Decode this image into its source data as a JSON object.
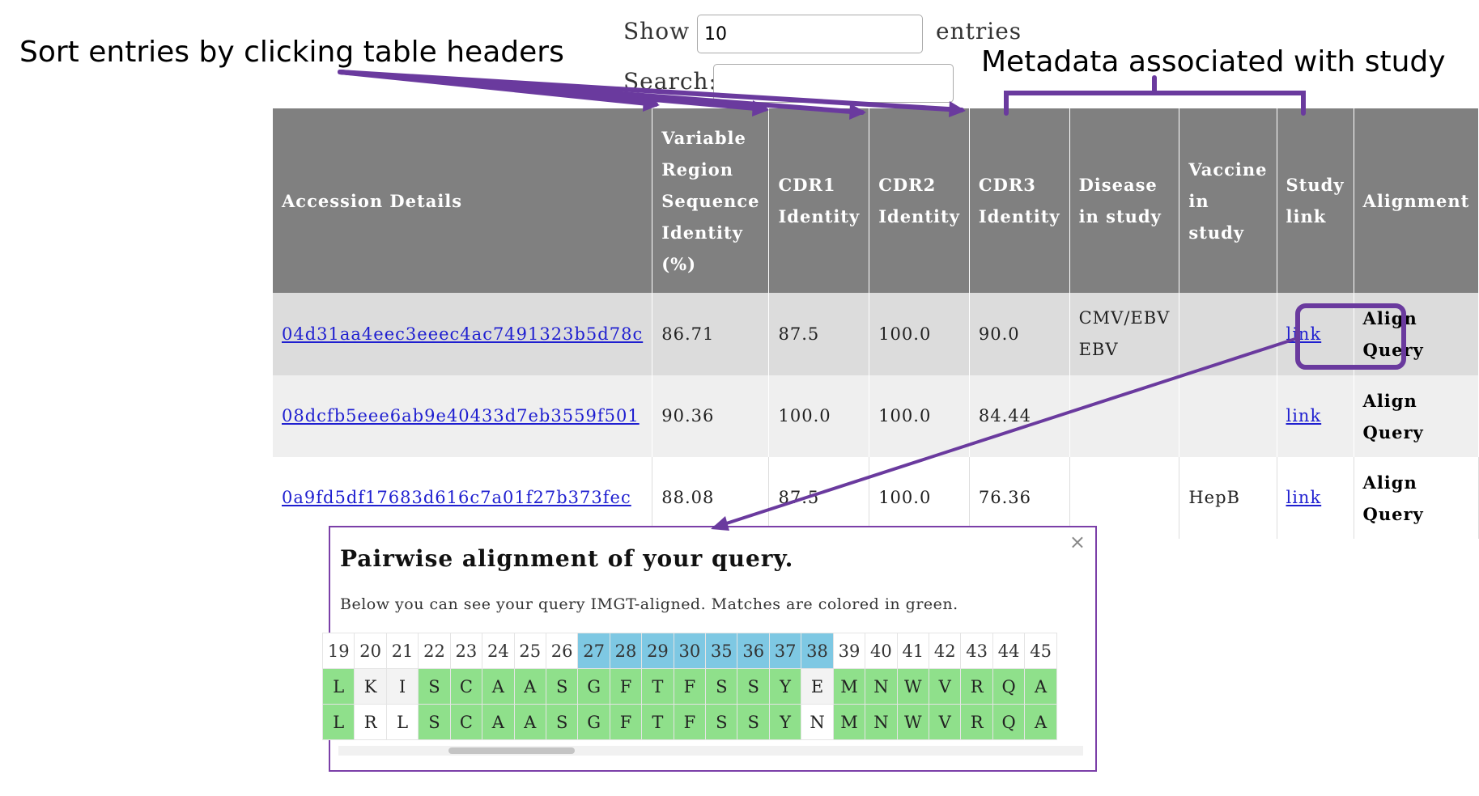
{
  "annotations": {
    "sort_hint": "Sort entries by clicking table headers",
    "metadata_hint": "Metadata associated with study"
  },
  "controls": {
    "show_label": "Show",
    "show_value": "10",
    "entries_label": "entries",
    "search_label": "Search:",
    "search_value": ""
  },
  "table": {
    "headers": [
      "Accession Details",
      "Variable Region Sequence Identity (%)",
      "CDR1 Identity",
      "CDR2 Identity",
      "CDR3 Identity",
      "Disease in study",
      "Vaccine in study",
      "Study link",
      "Alignment"
    ],
    "rows": [
      {
        "accession": "04d31aa4eec3eeec4ac7491323b5d78c",
        "vr_identity": "86.71",
        "cdr1": "87.5",
        "cdr2": "100.0",
        "cdr3": "90.0",
        "disease": "CMV/EBV EBV",
        "vaccine": "",
        "study_link": "link",
        "alignment": "Align Query"
      },
      {
        "accession": "08dcfb5eee6ab9e40433d7eb3559f501",
        "vr_identity": "90.36",
        "cdr1": "100.0",
        "cdr2": "100.0",
        "cdr3": "84.44",
        "disease": "",
        "vaccine": "",
        "study_link": "link",
        "alignment": "Align Query"
      },
      {
        "accession": "0a9fd5df17683d616c7a01f27b373fec",
        "vr_identity": "88.08",
        "cdr1": "87.5",
        "cdr2": "100.0",
        "cdr3": "76.36",
        "disease": "",
        "vaccine": "HepB",
        "study_link": "link",
        "alignment": "Align Query"
      }
    ]
  },
  "modal": {
    "title": "Pairwise alignment of your query.",
    "description": "Below you can see your query IMGT-aligned. Matches are colored in green.",
    "close_symbol": "×",
    "alignment": {
      "positions": [
        "19",
        "20",
        "21",
        "22",
        "23",
        "24",
        "25",
        "26",
        "27",
        "28",
        "29",
        "30",
        "35",
        "36",
        "37",
        "38",
        "39",
        "40",
        "41",
        "42",
        "43",
        "44",
        "45"
      ],
      "highlighted_positions": [
        "27",
        "28",
        "29",
        "30",
        "35",
        "36",
        "37",
        "38"
      ],
      "query": [
        "L",
        "K",
        "I",
        "S",
        "C",
        "A",
        "A",
        "S",
        "G",
        "F",
        "T",
        "F",
        "S",
        "S",
        "Y",
        "E",
        "M",
        "N",
        "W",
        "V",
        "R",
        "Q",
        "A"
      ],
      "target": [
        "L",
        "R",
        "L",
        "S",
        "C",
        "A",
        "A",
        "S",
        "G",
        "F",
        "T",
        "F",
        "S",
        "S",
        "Y",
        "N",
        "M",
        "N",
        "W",
        "V",
        "R",
        "Q",
        "A"
      ]
    }
  },
  "colors": {
    "header_bg": "#808080",
    "match_green": "#8fe08b",
    "cdr_blue": "#7ec8e3",
    "annotation_purple": "#6a3a9e",
    "link_blue": "#1f1fd0"
  }
}
